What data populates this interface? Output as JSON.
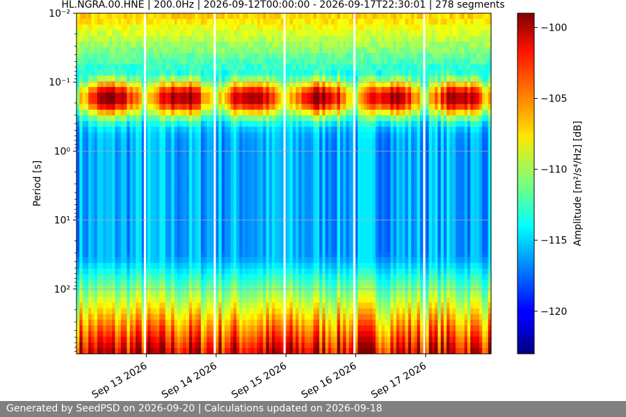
{
  "footer": {
    "text": "Generated by SeedPSD on 2026-09-20 | Calculations updated on 2026-09-18"
  },
  "chart_data": {
    "type": "heatmap",
    "title": "HL.NGRA.00.HNE | 200.0Hz | 2026-09-12T00:00:00 - 2026-09-17T22:30:01 | 278 segments",
    "xlabel": "",
    "ylabel": "Period [s]",
    "colorbar_label": "Amplitude [m²/s⁴/Hz] [dB]",
    "colormap": "jet",
    "y_scale": "log",
    "y_inverted": true,
    "ylim": [
      0.01,
      870
    ],
    "yticks": [
      {
        "value": 0.01,
        "label": "10⁻²"
      },
      {
        "value": 0.1,
        "label": "10⁻¹"
      },
      {
        "value": 1,
        "label": "10⁰"
      },
      {
        "value": 10,
        "label": "10¹"
      },
      {
        "value": 100,
        "label": "10²"
      }
    ],
    "grid": true,
    "xlim_days": [
      "2026-09-12T00:00:00",
      "2026-09-17T22:30:01"
    ],
    "xticks": [
      {
        "day": 1,
        "label": "Sep 13 2026"
      },
      {
        "day": 2,
        "label": "Sep 14 2026"
      },
      {
        "day": 3,
        "label": "Sep 15 2026"
      },
      {
        "day": 4,
        "label": "Sep 16 2026"
      },
      {
        "day": 5,
        "label": "Sep 17 2026"
      }
    ],
    "data_gaps_day": [
      0.98,
      1.98,
      2.98,
      3.98,
      4.98
    ],
    "clim": [
      -123,
      -99
    ],
    "colorbar_ticks": [
      -100,
      -105,
      -110,
      -115,
      -120
    ],
    "daily_peak_db": -100,
    "peak_period_s": 0.17,
    "microseism_background_db": -121,
    "long_period_db": -101,
    "segments": 278
  }
}
